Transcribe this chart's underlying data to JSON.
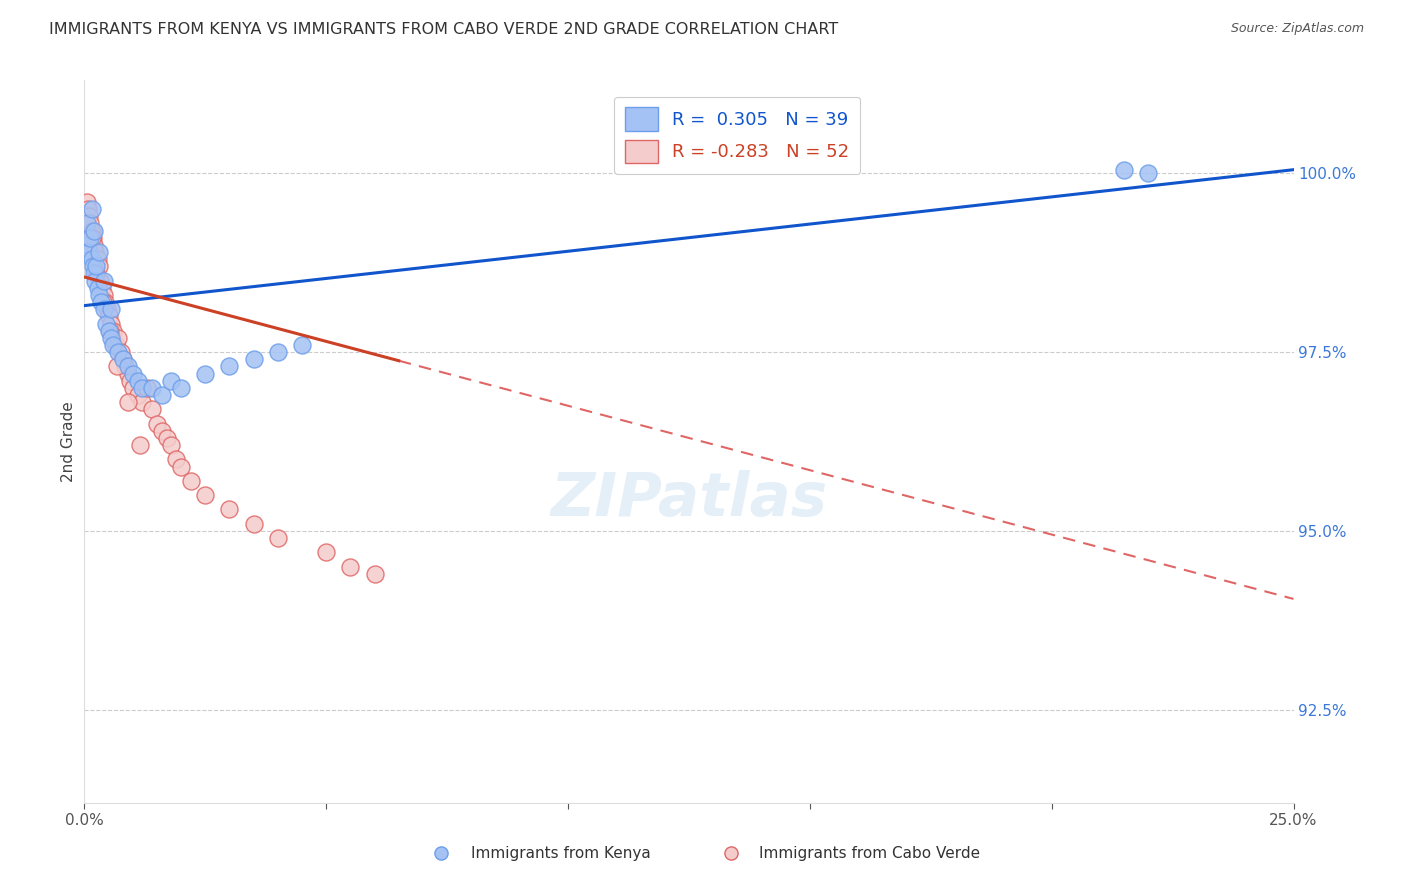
{
  "title": "IMMIGRANTS FROM KENYA VS IMMIGRANTS FROM CABO VERDE 2ND GRADE CORRELATION CHART",
  "source": "Source: ZipAtlas.com",
  "ylabel": "2nd Grade",
  "ytick_labels": [
    "92.5%",
    "95.0%",
    "97.5%",
    "100.0%"
  ],
  "ytick_values": [
    92.5,
    95.0,
    97.5,
    100.0
  ],
  "xmin": 0.0,
  "xmax": 25.0,
  "ymin": 91.2,
  "ymax": 101.3,
  "legend_r_kenya": "R =  0.305",
  "legend_n_kenya": "N = 39",
  "legend_r_cabo": "R = -0.283",
  "legend_n_cabo": "N = 52",
  "kenya_color": "#a4c2f4",
  "cabo_color": "#f4cccc",
  "kenya_edge_color": "#6d9eeb",
  "cabo_edge_color": "#e06666",
  "kenya_line_color": "#1155cc",
  "cabo_line_color": "#cc4125",
  "cabo_dash_color": "#e06666",
  "kenya_line_y0": 98.15,
  "kenya_line_y25": 100.05,
  "cabo_line_y0": 98.55,
  "cabo_solid_end_x": 6.5,
  "cabo_line_slope": -0.18,
  "kenya_scatter_x": [
    0.05,
    0.08,
    0.1,
    0.12,
    0.15,
    0.18,
    0.2,
    0.22,
    0.25,
    0.28,
    0.3,
    0.35,
    0.4,
    0.45,
    0.5,
    0.55,
    0.6,
    0.7,
    0.8,
    0.9,
    1.0,
    1.1,
    1.2,
    1.4,
    1.6,
    1.8,
    2.0,
    2.5,
    3.0,
    3.5,
    4.0,
    4.5,
    0.15,
    0.2,
    0.3,
    0.4,
    0.55,
    21.5,
    22.0
  ],
  "kenya_scatter_y": [
    99.3,
    99.0,
    98.9,
    99.1,
    98.8,
    98.7,
    98.6,
    98.5,
    98.7,
    98.4,
    98.3,
    98.2,
    98.1,
    97.9,
    97.8,
    97.7,
    97.6,
    97.5,
    97.4,
    97.3,
    97.2,
    97.1,
    97.0,
    97.0,
    96.9,
    97.1,
    97.0,
    97.2,
    97.3,
    97.4,
    97.5,
    97.6,
    99.5,
    99.2,
    98.9,
    98.5,
    98.1,
    100.05,
    100.0
  ],
  "cabo_scatter_x": [
    0.05,
    0.08,
    0.1,
    0.12,
    0.15,
    0.18,
    0.2,
    0.22,
    0.25,
    0.28,
    0.3,
    0.33,
    0.36,
    0.4,
    0.43,
    0.46,
    0.5,
    0.55,
    0.6,
    0.65,
    0.7,
    0.75,
    0.8,
    0.85,
    0.9,
    0.95,
    1.0,
    1.1,
    1.2,
    1.3,
    1.4,
    1.5,
    1.6,
    1.7,
    1.8,
    1.9,
    2.0,
    2.2,
    2.5,
    3.0,
    3.5,
    4.0,
    5.0,
    5.5,
    6.0,
    0.15,
    0.25,
    0.38,
    0.52,
    0.68,
    0.9,
    1.15
  ],
  "cabo_scatter_y": [
    99.6,
    99.5,
    99.4,
    99.3,
    99.2,
    99.1,
    99.0,
    98.9,
    98.8,
    98.8,
    98.7,
    98.5,
    98.4,
    98.3,
    98.2,
    98.1,
    98.0,
    97.9,
    97.8,
    97.6,
    97.7,
    97.5,
    97.4,
    97.3,
    97.2,
    97.1,
    97.0,
    96.9,
    96.8,
    97.0,
    96.7,
    96.5,
    96.4,
    96.3,
    96.2,
    96.0,
    95.9,
    95.7,
    95.5,
    95.3,
    95.1,
    94.9,
    94.7,
    94.5,
    94.4,
    99.1,
    98.6,
    98.2,
    97.8,
    97.3,
    96.8,
    96.2
  ]
}
